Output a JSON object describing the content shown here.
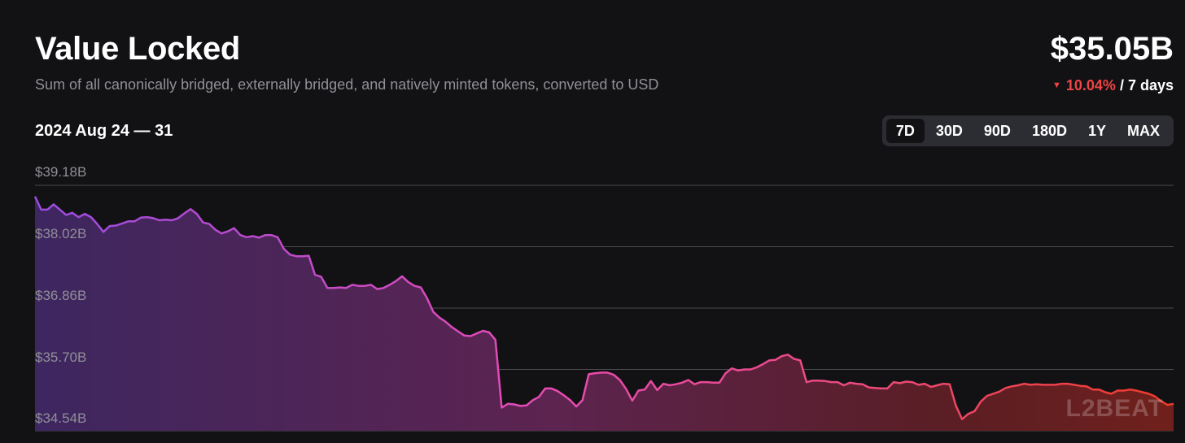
{
  "header": {
    "title": "Value Locked",
    "subtitle": "Sum of all canonically bridged, externally bridged, and natively minted tokens, converted to USD",
    "total": "$35.05B",
    "change_pct": "10.04%",
    "change_period": "/ 7 days",
    "date_range": "2024 Aug 24 — 31"
  },
  "range_tabs": [
    {
      "label": "7D",
      "active": true
    },
    {
      "label": "30D",
      "active": false
    },
    {
      "label": "90D",
      "active": false
    },
    {
      "label": "180D",
      "active": false
    },
    {
      "label": "1Y",
      "active": false
    },
    {
      "label": "MAX",
      "active": false
    }
  ],
  "watermark": "L2BEAT",
  "colors": {
    "background": "#121214",
    "negative": "#ef4444",
    "line_start": "#9a4be0",
    "line_mid": "#e84bb4",
    "line_end": "#ef3a2a"
  },
  "chart_data": {
    "type": "area",
    "ylabel": "",
    "xlabel": "",
    "ylim": [
      34.54,
      39.18
    ],
    "y_tick_labels": [
      "$39.18B",
      "$38.02B",
      "$36.86B",
      "$35.70B",
      "$34.54B"
    ],
    "y_ticks": [
      39.18,
      38.02,
      36.86,
      35.7,
      34.54
    ],
    "grid": true,
    "gradient": "purple to pink to red, left to right",
    "series": [
      {
        "values": [
          38.97,
          38.72,
          38.72,
          38.82,
          38.72,
          38.62,
          38.66,
          38.58,
          38.64,
          38.58,
          38.45,
          38.3,
          38.41,
          38.42,
          38.46,
          38.5,
          38.5,
          38.57,
          38.58,
          38.56,
          38.52,
          38.53,
          38.52,
          38.56,
          38.65,
          38.73,
          38.64,
          38.48,
          38.45,
          38.34,
          38.27,
          38.31,
          38.37,
          38.24,
          38.2,
          38.22,
          38.19,
          38.24,
          38.24,
          38.2,
          37.98,
          37.87,
          37.84,
          37.84,
          37.85,
          37.49,
          37.45,
          37.24,
          37.24,
          37.25,
          37.24,
          37.3,
          37.28,
          37.28,
          37.3,
          37.22,
          37.24,
          37.3,
          37.37,
          37.46,
          37.35,
          37.28,
          37.25,
          37.05,
          36.79,
          36.68,
          36.6,
          36.5,
          36.42,
          36.34,
          36.33,
          36.38,
          36.43,
          36.4,
          36.26,
          34.98,
          35.05,
          35.04,
          35.01,
          35.02,
          35.12,
          35.18,
          35.34,
          35.34,
          35.29,
          35.21,
          35.12,
          35.0,
          35.12,
          35.61,
          35.63,
          35.64,
          35.64,
          35.6,
          35.5,
          35.33,
          35.11,
          35.3,
          35.32,
          35.48,
          35.31,
          35.43,
          35.4,
          35.42,
          35.45,
          35.5,
          35.42,
          35.46,
          35.46,
          35.45,
          35.45,
          35.63,
          35.72,
          35.68,
          35.7,
          35.7,
          35.74,
          35.8,
          35.87,
          35.88,
          35.95,
          35.98,
          35.9,
          35.87,
          35.46,
          35.49,
          35.49,
          35.48,
          35.46,
          35.46,
          35.4,
          35.45,
          35.43,
          35.42,
          35.36,
          35.35,
          35.34,
          35.34,
          35.46,
          35.44,
          35.47,
          35.46,
          35.41,
          35.43,
          35.37,
          35.4,
          35.43,
          35.42,
          35.02,
          34.76,
          34.86,
          34.91,
          35.09,
          35.2,
          35.24,
          35.28,
          35.35,
          35.38,
          35.4,
          35.43,
          35.41,
          35.42,
          35.41,
          35.41,
          35.41,
          35.43,
          35.43,
          35.41,
          35.39,
          35.38,
          35.32,
          35.32,
          35.27,
          35.24,
          35.3,
          35.3,
          35.32,
          35.3,
          35.27,
          35.24,
          35.19,
          35.1,
          35.03,
          35.05
        ]
      }
    ]
  }
}
